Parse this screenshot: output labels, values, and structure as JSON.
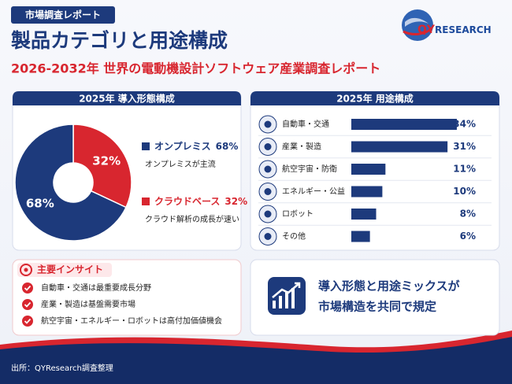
{
  "badge": "市場調査レポート",
  "logo": {
    "brand": "QY",
    "suffix": "RESEARCH"
  },
  "title": "製品カテゴリと用途構成",
  "subtitle": "2026-2032年 世界の電動機設計ソフトウェア産業調査レポート",
  "chart_data": [
    {
      "type": "pie",
      "title": "2025年 導入形態構成",
      "categories": [
        "オンプレミス",
        "クラウドベース"
      ],
      "values": [
        68,
        32
      ],
      "value_labels": [
        "68%",
        "32%"
      ],
      "colors": [
        "#1d3a7c",
        "#d8262f"
      ],
      "descriptions": [
        "オンプレミスが主流",
        "クラウド解析の成長が速い"
      ]
    },
    {
      "type": "bar",
      "title": "2025年 用途構成",
      "categories": [
        "自動車・交通",
        "産業・製造",
        "航空宇宙・防衛",
        "エネルギー・公益",
        "ロボット",
        "その他"
      ],
      "values": [
        34,
        31,
        11,
        10,
        8,
        6
      ],
      "value_labels": [
        "34%",
        "31%",
        "11%",
        "10%",
        "8%",
        "6%"
      ],
      "color": "#1d3a7c"
    }
  ],
  "insights": {
    "title": "主要インサイト",
    "items": [
      "自動車・交通は最重要成長分野",
      "産業・製造は基盤需要市場",
      "航空宇宙・エネルギー・ロボットは高付加価値機会"
    ]
  },
  "conclusion": {
    "lines": [
      "導入形態と用途ミックスが",
      "市場構造を共同で規定"
    ]
  },
  "source": "出所：QYResearch調査整理"
}
